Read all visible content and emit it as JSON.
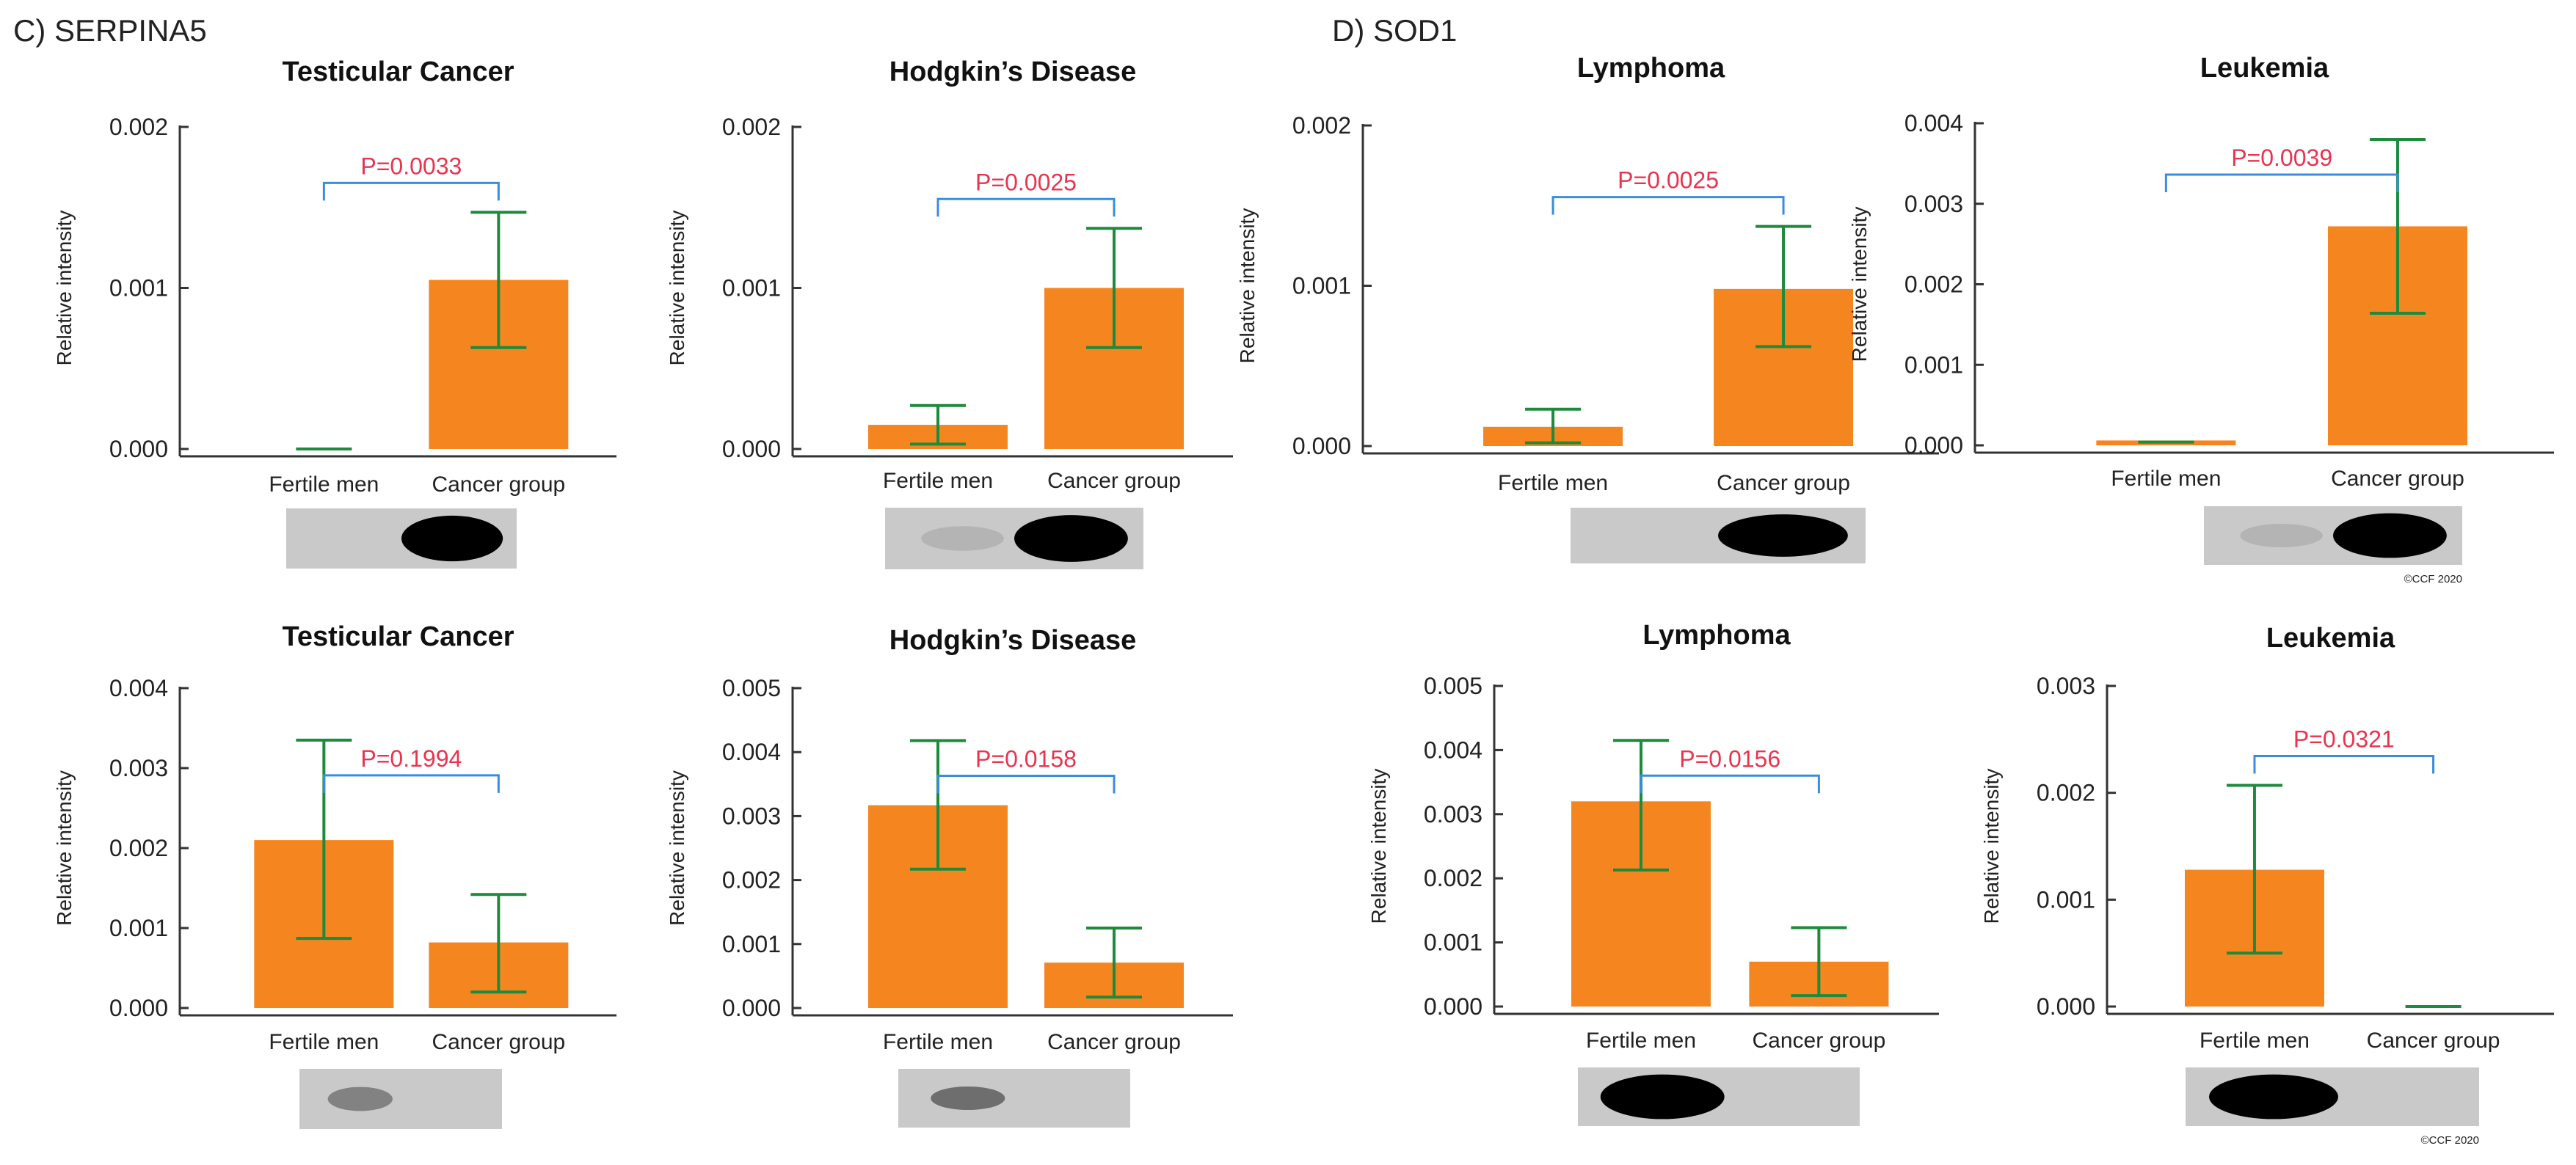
{
  "colors": {
    "bar": "#F5861F",
    "error_bar": "#1E8A3C",
    "bracket": "#3A8DDE",
    "p_value": "#E8344E",
    "axis": "#333333"
  },
  "panels": [
    {
      "label": "C) SERPINA5"
    },
    {
      "label": "D) SOD1"
    }
  ],
  "y_axis_label": "Relative intensity",
  "copyright": "©CCF 2020",
  "chart_data": [
    {
      "type": "bar",
      "panel": "C) SERPINA5",
      "title": "Testicular Cancer",
      "ylabel": "Relative intensity",
      "categories": [
        "Fertile men",
        "Cancer group"
      ],
      "values": [
        0.0,
        0.00105
      ],
      "error": [
        [
          0.0,
          0.0
        ],
        [
          0.00063,
          0.00147
        ]
      ],
      "yticks": [
        "0.000",
        "0.001",
        "0.002"
      ],
      "ylim": [
        0,
        0.002
      ],
      "p_value": "P=0.0033",
      "blot": [
        0,
        1
      ]
    },
    {
      "type": "bar",
      "panel": "C) SERPINA5",
      "title": "Hodgkin’s Disease",
      "ylabel": "Relative intensity",
      "categories": [
        "Fertile men",
        "Cancer group"
      ],
      "values": [
        0.00015,
        0.001
      ],
      "error": [
        [
          3e-05,
          0.00027
        ],
        [
          0.00063,
          0.00137
        ]
      ],
      "yticks": [
        "0.000",
        "0.001",
        "0.002"
      ],
      "ylim": [
        0,
        0.002
      ],
      "p_value": "P=0.0025",
      "blot": [
        0.1,
        1
      ]
    },
    {
      "type": "bar",
      "panel": "C) SERPINA5",
      "title": "Lymphoma",
      "ylabel": "Relative intensity",
      "categories": [
        "Fertile men",
        "Cancer group"
      ],
      "values": [
        0.00012,
        0.00098
      ],
      "error": [
        [
          2e-05,
          0.00023
        ],
        [
          0.00062,
          0.00137
        ]
      ],
      "yticks": [
        "0.000",
        "0.001",
        "0.002"
      ],
      "ylim": [
        0,
        0.002
      ],
      "p_value": "P=0.0025",
      "blot": [
        0,
        1
      ]
    },
    {
      "type": "bar",
      "panel": "C) SERPINA5",
      "title": "Leukemia",
      "ylabel": "Relative intensity",
      "categories": [
        "Fertile men",
        "Cancer group"
      ],
      "values": [
        6e-05,
        0.00272
      ],
      "error": [
        [
          4e-05,
          4e-05
        ],
        [
          0.00164,
          0.0038
        ]
      ],
      "yticks": [
        "0.000",
        "0.001",
        "0.002",
        "0.003",
        "0.004"
      ],
      "ylim": [
        0,
        0.004
      ],
      "p_value": "P=0.0039",
      "blot": [
        0.1,
        1
      ],
      "copyright": true
    },
    {
      "type": "bar",
      "panel": "D) SOD1",
      "title": "Testicular Cancer",
      "ylabel": "Relative intensity",
      "categories": [
        "Fertile men",
        "Cancer group"
      ],
      "values": [
        0.0021,
        0.00082
      ],
      "error": [
        [
          0.00087,
          0.00335
        ],
        [
          0.0002,
          0.00142
        ]
      ],
      "yticks": [
        "0.000",
        "0.001",
        "0.002",
        "0.003",
        "0.004"
      ],
      "ylim": [
        0,
        0.004
      ],
      "p_value": "P=0.1994",
      "blot": [
        0.35,
        0
      ]
    },
    {
      "type": "bar",
      "panel": "D) SOD1",
      "title": "Hodgkin’s Disease",
      "ylabel": "Relative intensity",
      "categories": [
        "Fertile men",
        "Cancer group"
      ],
      "values": [
        0.00317,
        0.00071
      ],
      "error": [
        [
          0.00217,
          0.00418
        ],
        [
          0.00017,
          0.00125
        ]
      ],
      "yticks": [
        "0.000",
        "0.001",
        "0.002",
        "0.003",
        "0.004",
        "0.005"
      ],
      "ylim": [
        0,
        0.005
      ],
      "p_value": "P=0.0158",
      "blot": [
        0.45,
        0
      ]
    },
    {
      "type": "bar",
      "panel": "D) SOD1",
      "title": "Lymphoma",
      "ylabel": "Relative intensity",
      "categories": [
        "Fertile men",
        "Cancer group"
      ],
      "values": [
        0.0032,
        0.0007
      ],
      "error": [
        [
          0.00213,
          0.00415
        ],
        [
          0.00017,
          0.00123
        ]
      ],
      "yticks": [
        "0.000",
        "0.001",
        "0.002",
        "0.003",
        "0.004",
        "0.005"
      ],
      "ylim": [
        0,
        0.005
      ],
      "p_value": "P=0.0156",
      "blot": [
        1,
        0
      ]
    },
    {
      "type": "bar",
      "panel": "D) SOD1",
      "title": "Leukemia",
      "ylabel": "Relative intensity",
      "categories": [
        "Fertile men",
        "Cancer group"
      ],
      "values": [
        0.00128,
        0.0
      ],
      "error": [
        [
          0.0005,
          0.00207
        ],
        [
          0.0,
          0.0
        ]
      ],
      "yticks": [
        "0.000",
        "0.001",
        "0.002",
        "0.003"
      ],
      "ylim": [
        0,
        0.003
      ],
      "p_value": "P=0.0321",
      "blot": [
        1,
        0
      ],
      "copyright": true
    }
  ]
}
